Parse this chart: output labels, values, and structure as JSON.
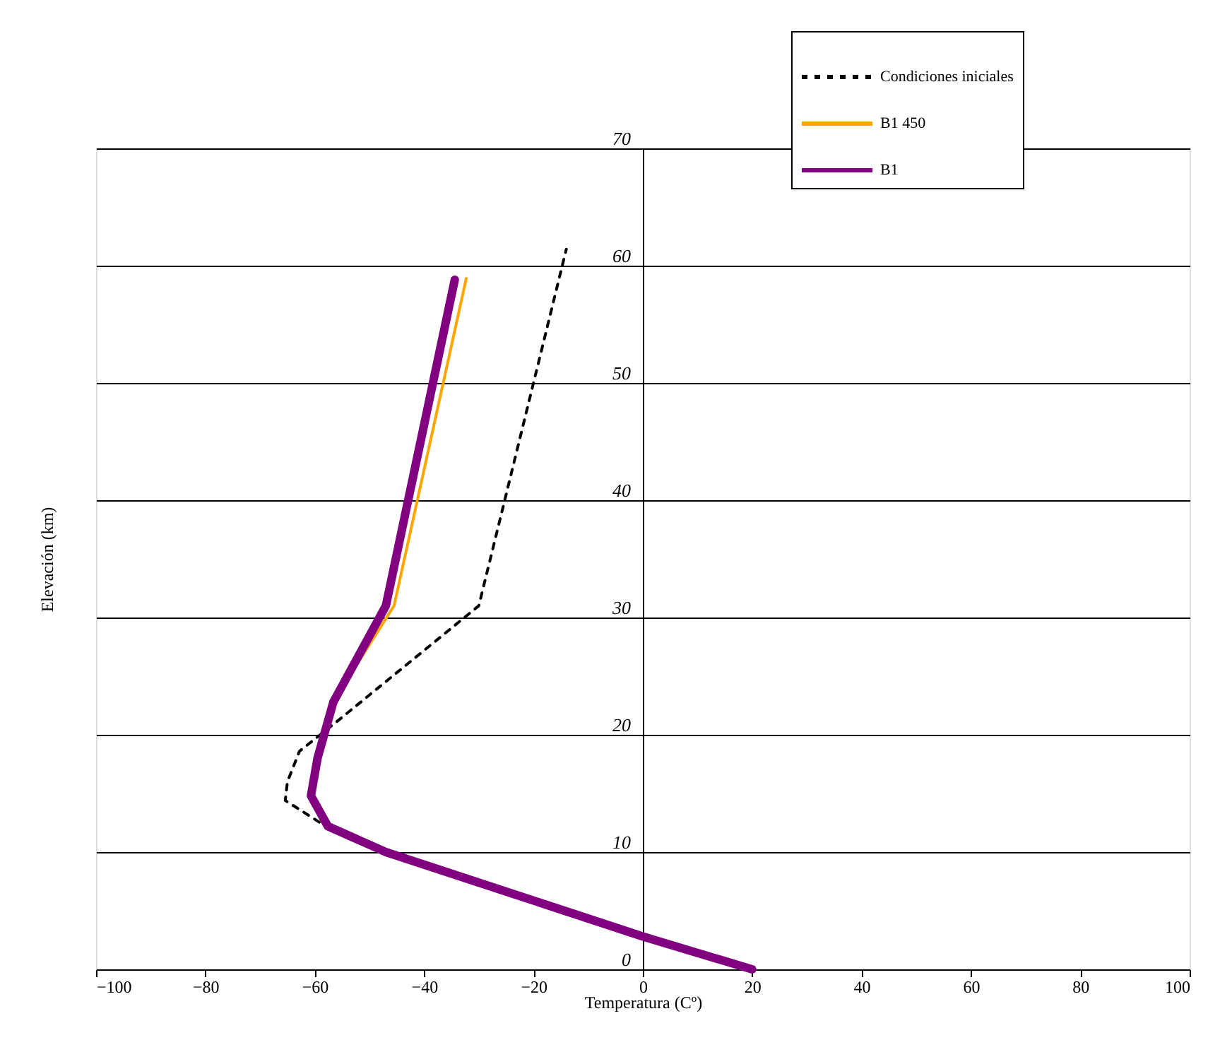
{
  "chart_data": {
    "type": "line",
    "xlabel": "Temperatura (Cº)",
    "ylabel": "Elevación (km)",
    "xlim": [
      -100,
      100
    ],
    "xticks": [
      -100,
      -80,
      -60,
      -40,
      -20,
      0,
      20,
      40,
      60,
      80,
      100
    ],
    "ylim": [
      0,
      70
    ],
    "yticks": [
      0,
      10,
      20,
      30,
      40,
      50,
      60,
      70
    ],
    "grid": "y",
    "legend": "top right",
    "marker": "none",
    "series": [
      {
        "name": "Condiciones iniciales",
        "color": "#000000",
        "line_style": "dotted",
        "x": [
          20,
          0,
          -47,
          -58,
          -65.4,
          -65,
          -62.8,
          -56.3,
          -30,
          -14
        ],
        "values": [
          0,
          2.8,
          10,
          12.2,
          14.4,
          16,
          18.6,
          21,
          31,
          61.4
        ]
      },
      {
        "name": "B1  450",
        "color": "#ffa500",
        "line_style": "solid",
        "x": [
          -52.3,
          -45.5,
          -32.3
        ],
        "values": [
          26,
          31,
          58.9
        ]
      },
      {
        "name": "B1",
        "color": "#800080",
        "line_style": "solid",
        "x": [
          20,
          0,
          -47,
          -57.6,
          -60.7,
          -59.5,
          -56.6,
          -47,
          -34.4
        ],
        "values": [
          0,
          2.8,
          10,
          12.2,
          14.8,
          18,
          22.8,
          31,
          58.8
        ]
      }
    ]
  }
}
